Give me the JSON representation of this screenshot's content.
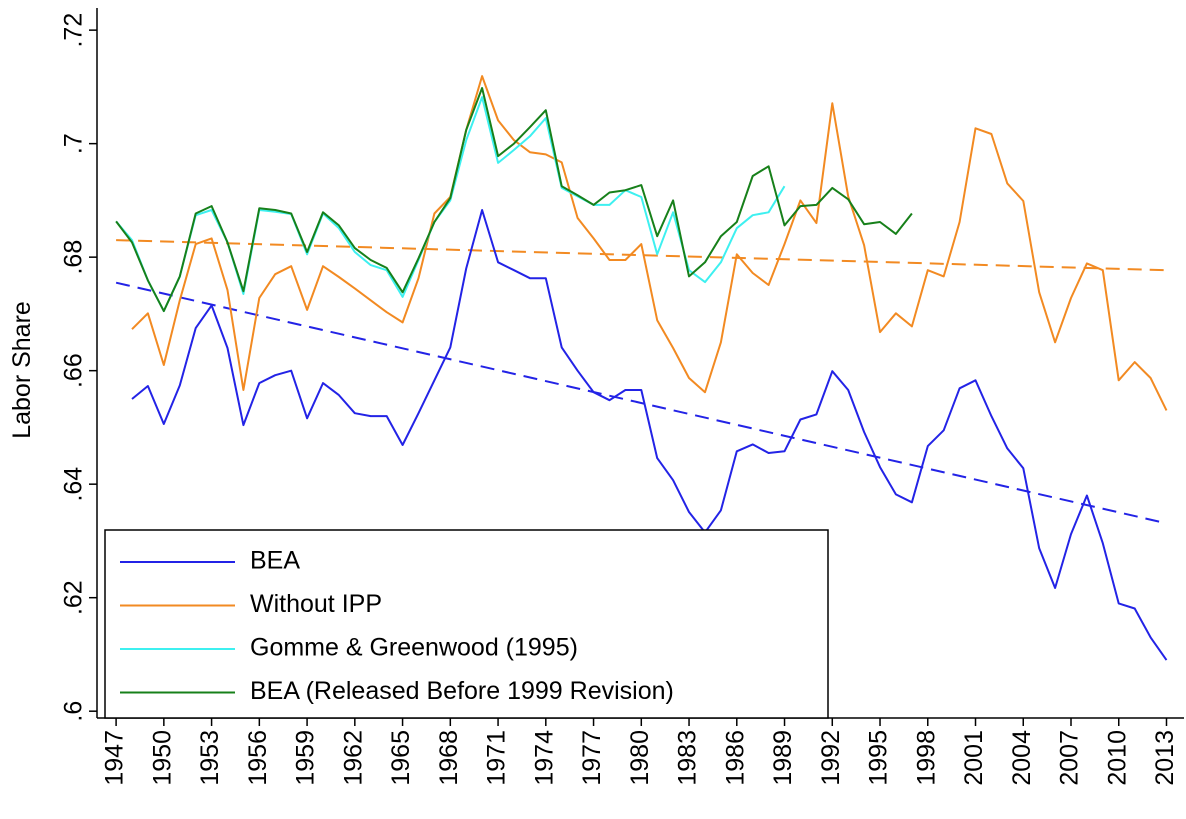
{
  "chart_data": {
    "type": "line",
    "y_label": "Labor Share",
    "x": [
      1947,
      1948,
      1949,
      1950,
      1951,
      1952,
      1953,
      1954,
      1955,
      1956,
      1957,
      1958,
      1959,
      1960,
      1961,
      1962,
      1963,
      1964,
      1965,
      1966,
      1967,
      1968,
      1969,
      1970,
      1971,
      1972,
      1973,
      1974,
      1975,
      1976,
      1977,
      1978,
      1979,
      1980,
      1981,
      1982,
      1983,
      1984,
      1985,
      1986,
      1987,
      1988,
      1989,
      1990,
      1991,
      1992,
      1993,
      1994,
      1995,
      1996,
      1997,
      1998,
      1999,
      2000,
      2001,
      2002,
      2003,
      2004,
      2005,
      2006,
      2007,
      2008,
      2009,
      2010,
      2011,
      2012,
      2013
    ],
    "xlim": [
      1945.8,
      2014.1
    ],
    "xticks": [
      1947,
      1950,
      1953,
      1956,
      1959,
      1962,
      1965,
      1968,
      1971,
      1974,
      1977,
      1980,
      1983,
      1986,
      1989,
      1992,
      1995,
      1998,
      2001,
      2004,
      2007,
      2010,
      2013
    ],
    "ylim": [
      0.5988,
      0.7239
    ],
    "yticks": [
      {
        "value": 0.6,
        "label": ".6"
      },
      {
        "value": 0.62,
        "label": ".62"
      },
      {
        "value": 0.64,
        "label": ".64"
      },
      {
        "value": 0.66,
        "label": ".66"
      },
      {
        "value": 0.68,
        "label": ".68"
      },
      {
        "value": 0.7,
        "label": ".7"
      },
      {
        "value": 0.72,
        "label": ".72"
      }
    ],
    "grid": false,
    "legend": "lower left",
    "series": [
      {
        "name": "BEA",
        "color": "#2323e6",
        "values": [
          null,
          0.655,
          0.6573,
          0.6506,
          0.6574,
          0.6675,
          0.6715,
          0.664,
          0.6504,
          0.6578,
          0.6592,
          0.66,
          0.6516,
          0.6578,
          0.6557,
          0.6525,
          0.652,
          0.652,
          0.6469,
          0.6525,
          0.6583,
          0.6641,
          0.678,
          0.6883,
          0.6791,
          0.6777,
          0.6763,
          0.6763,
          0.6641,
          0.66,
          0.6562,
          0.6548,
          0.6566,
          0.6566,
          0.6446,
          0.6407,
          0.6351,
          0.6315,
          0.6354,
          0.6458,
          0.647,
          0.6455,
          0.6458,
          0.6514,
          0.6523,
          0.6599,
          0.6566,
          0.6492,
          0.643,
          0.6382,
          0.6368,
          0.6467,
          0.6495,
          0.6569,
          0.6583,
          0.652,
          0.6463,
          0.6428,
          0.6287,
          0.6217,
          0.6312,
          0.638,
          0.6296,
          0.619,
          0.6181,
          0.613,
          0.609
        ]
      },
      {
        "name": "Without IPP",
        "color": "#f28a22",
        "values": [
          null,
          0.6673,
          0.6701,
          0.661,
          0.6724,
          0.6823,
          0.6833,
          0.6742,
          0.6566,
          0.6728,
          0.677,
          0.6784,
          0.6707,
          0.6784,
          0.6765,
          0.6745,
          0.6724,
          0.6703,
          0.6685,
          0.6763,
          0.6877,
          0.6906,
          0.7024,
          0.7119,
          0.7041,
          0.7006,
          0.6985,
          0.6981,
          0.6967,
          0.6869,
          0.6833,
          0.6795,
          0.6795,
          0.6823,
          0.6689,
          0.664,
          0.6587,
          0.6562,
          0.665,
          0.6805,
          0.6772,
          0.6751,
          0.6823,
          0.69,
          0.686,
          0.7071,
          0.6907,
          0.6821,
          0.6668,
          0.6701,
          0.6678,
          0.6777,
          0.6766,
          0.6862,
          0.7027,
          0.7017,
          0.693,
          0.6899,
          0.6738,
          0.665,
          0.6728,
          0.6789,
          0.6777,
          0.6583,
          0.6615,
          0.6587,
          0.653
        ]
      },
      {
        "name": "Gomme & Greenwood (1995)",
        "color": "#3ef0f0",
        "values": [
          0.6863,
          0.683,
          0.6759,
          0.6705,
          0.6766,
          0.6874,
          0.6883,
          0.6826,
          0.6735,
          0.6883,
          0.688,
          0.6876,
          0.6805,
          0.6877,
          0.6851,
          0.6809,
          0.6786,
          0.6777,
          0.673,
          0.6795,
          0.6862,
          0.69,
          0.7006,
          0.7082,
          0.6966,
          0.6989,
          0.7013,
          0.7045,
          0.6922,
          0.6907,
          0.6892,
          0.6892,
          0.6918,
          0.6906,
          0.6805,
          0.6879,
          0.6777,
          0.6756,
          0.6791,
          0.6851,
          0.6874,
          0.6879,
          0.6925,
          null,
          null,
          null,
          null,
          null,
          null,
          null,
          null,
          null,
          null,
          null,
          null,
          null,
          null,
          null,
          null,
          null,
          null,
          null,
          null,
          null,
          null,
          null,
          null
        ]
      },
      {
        "name": "BEA (Released Before 1999 Revision)",
        "color": "#17801a",
        "values": [
          0.6863,
          0.6826,
          0.6759,
          0.6705,
          0.6766,
          0.6877,
          0.689,
          0.6826,
          0.674,
          0.6886,
          0.6883,
          0.6877,
          0.6809,
          0.6879,
          0.6856,
          0.6816,
          0.6795,
          0.6781,
          0.6738,
          0.6798,
          0.6862,
          0.6904,
          0.7024,
          0.7098,
          0.6978,
          0.7,
          0.7029,
          0.7059,
          0.6925,
          0.6909,
          0.6892,
          0.6914,
          0.6918,
          0.6927,
          0.6837,
          0.69,
          0.6766,
          0.6791,
          0.6837,
          0.6862,
          0.6943,
          0.696,
          0.6856,
          0.689,
          0.6892,
          0.6922,
          0.6902,
          0.6858,
          0.6862,
          0.6841,
          0.6877,
          null,
          null,
          null,
          null,
          null,
          null,
          null,
          null,
          null,
          null,
          null,
          null,
          null,
          null,
          null,
          null
        ]
      }
    ],
    "trend_lines": [
      {
        "color": "#f28a22",
        "linestyle": "dashed",
        "x": [
          1947,
          2013
        ],
        "values": [
          0.683,
          0.6777
        ]
      },
      {
        "color": "#2323e6",
        "linestyle": "dashed",
        "x": [
          1947,
          2013
        ],
        "values": [
          0.6755,
          0.6331
        ]
      }
    ]
  }
}
